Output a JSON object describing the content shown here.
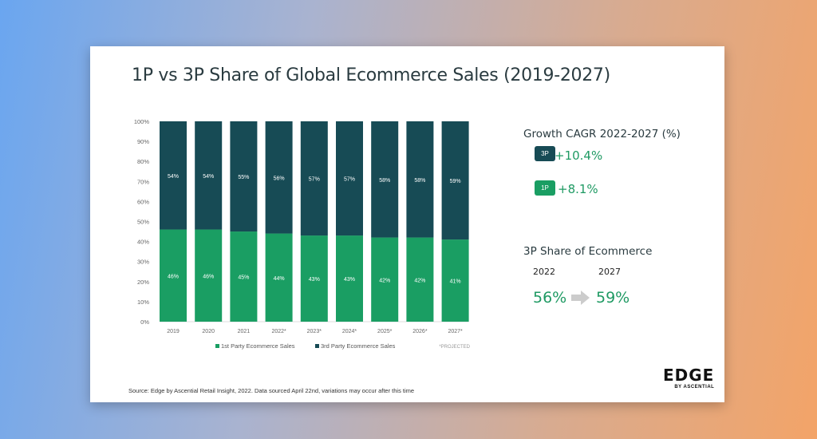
{
  "title": "1P vs 3P Share of Global Ecommerce Sales (2019-2027)",
  "source": "Source: Edge by Ascential Retail Insight, 2022. Data sourced April 22nd, variations may occur after this time",
  "chart_data": {
    "type": "bar",
    "stacked": true,
    "categories": [
      "2019",
      "2020",
      "2021",
      "2022*",
      "2023*",
      "2024*",
      "2025*",
      "2026*",
      "2027*"
    ],
    "series": [
      {
        "name": "1st Party Ecommerce Sales",
        "color": "#1a9e63",
        "values": [
          46,
          46,
          45,
          44,
          43,
          43,
          42,
          42,
          41
        ]
      },
      {
        "name": "3rd Party Ecommerce Sales",
        "color": "#174b55",
        "values": [
          54,
          54,
          55,
          56,
          57,
          57,
          58,
          58,
          59
        ]
      }
    ],
    "yticks": [
      "0%",
      "10%",
      "20%",
      "30%",
      "40%",
      "50%",
      "60%",
      "70%",
      "80%",
      "90%",
      "100%"
    ],
    "ylim": [
      0,
      100
    ],
    "note": "*PROJECTED",
    "legend": "bottom"
  },
  "side": {
    "cagr_title": "Growth CAGR 2022-2027 (%)",
    "items": [
      {
        "badge": "3P",
        "value": "+10.4%",
        "color": "#174b55"
      },
      {
        "badge": "1P",
        "value": "+8.1%",
        "color": "#1a9e63"
      }
    ],
    "share_title": "3P Share of Ecommerce",
    "from_year": "2022",
    "to_year": "2027",
    "from_value": "56%",
    "to_value": "59%"
  },
  "logo": {
    "name": "EDGE",
    "sub": "BY ASCENTIAL"
  }
}
